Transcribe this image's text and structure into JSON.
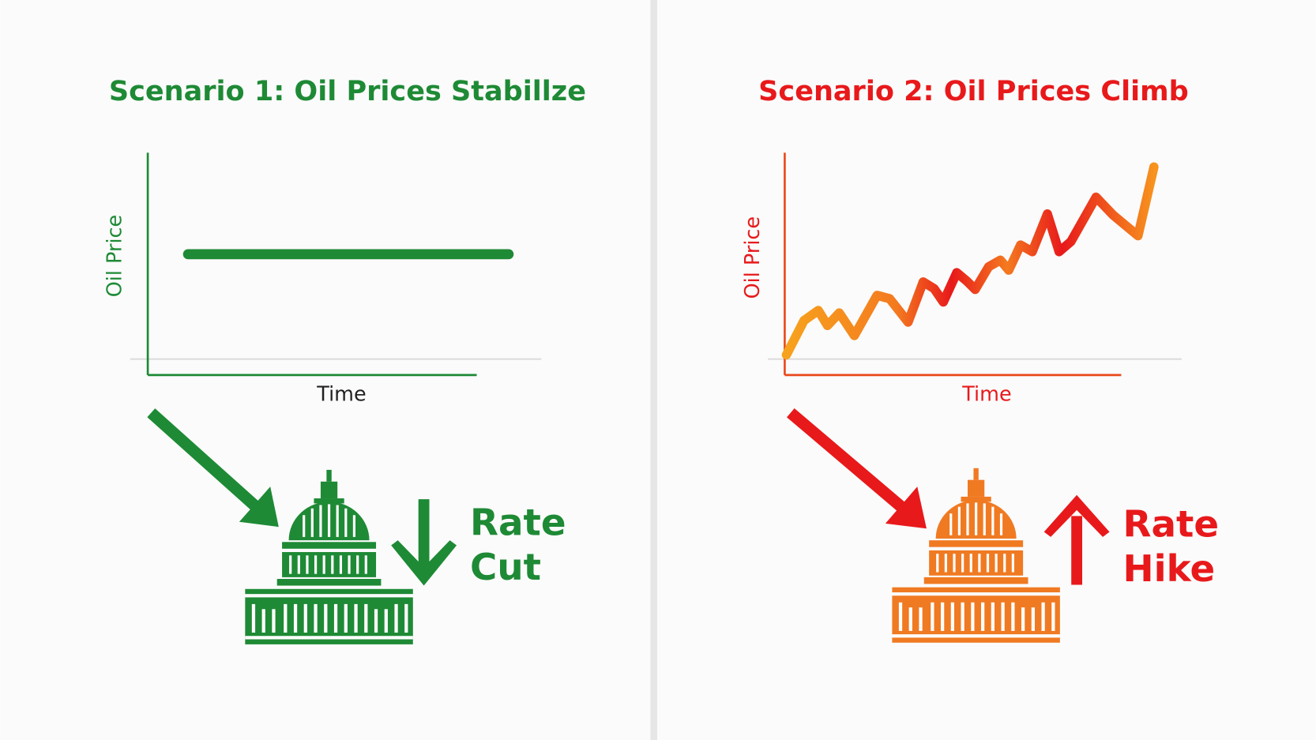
{
  "panels": [
    {
      "title": "Scenario 1: Oil Prices Stabillze",
      "y_axis_label": "Oil Price",
      "x_axis_label": "Time",
      "outcome": [
        "Rate",
        "Cut"
      ]
    },
    {
      "title": "Scenario 2: Oil Prices Climb",
      "y_axis_label": "Oil Price",
      "x_axis_label": "Time",
      "outcome": [
        "Rate",
        "Hike"
      ]
    }
  ]
}
